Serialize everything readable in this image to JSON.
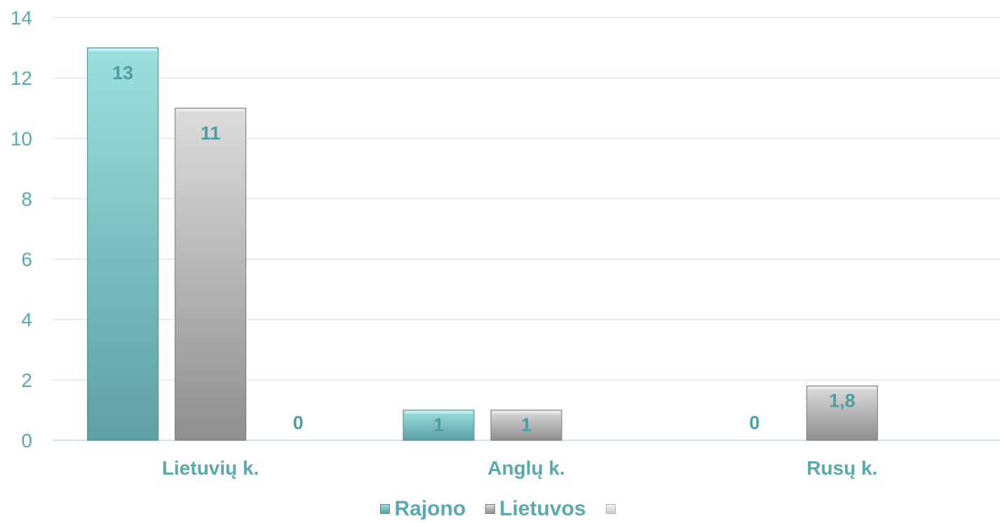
{
  "chart_data": {
    "type": "bar",
    "categories": [
      "Lietuvių k.",
      "Anglų k.",
      "Rusų k."
    ],
    "series": [
      {
        "name": "Rajono",
        "values": [
          13,
          1,
          0
        ],
        "labels": [
          "13",
          "1",
          "0"
        ],
        "color": "#7fcfd0"
      },
      {
        "name": "Lietuvos",
        "values": [
          11,
          1,
          1.8
        ],
        "labels": [
          "11",
          "1",
          "1,8"
        ],
        "color": "#bfbfbf"
      },
      {
        "name": "",
        "values": [
          0,
          null,
          null
        ],
        "labels": [
          "0",
          "",
          ""
        ],
        "color": "#e6e6e6"
      }
    ],
    "ylim": [
      0,
      14
    ],
    "yticks": [
      0,
      2,
      4,
      6,
      8,
      10,
      12,
      14
    ],
    "grid": true,
    "legend_position": "bottom",
    "colors": {
      "axis_text": "#5aa9ad",
      "gridline": "#d9ebea"
    }
  }
}
